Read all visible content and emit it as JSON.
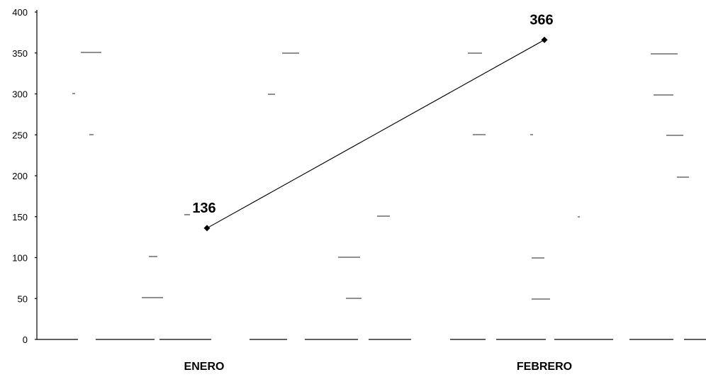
{
  "chart_data": {
    "type": "line",
    "categories": [
      "ENERO",
      "FEBRERO"
    ],
    "series": [
      {
        "values": [
          136,
          366
        ]
      }
    ],
    "data_labels": [
      "136",
      "366"
    ],
    "y_ticks": [
      "0",
      "50",
      "100",
      "150",
      "200",
      "250",
      "300",
      "350",
      "400"
    ],
    "ylim": [
      0,
      400
    ],
    "grid": false,
    "legend": "none",
    "colors": {
      "line": "#000000",
      "marker": "#000000",
      "text": "#000000"
    }
  }
}
